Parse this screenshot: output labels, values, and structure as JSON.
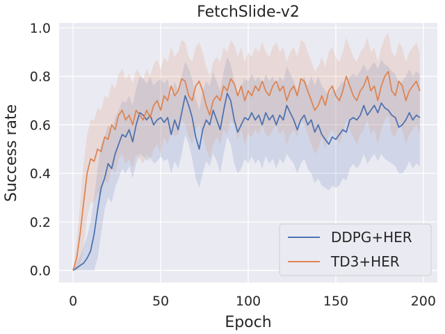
{
  "chart_data": {
    "type": "line",
    "title": "FetchSlide-v2",
    "xlabel": "Epoch",
    "ylabel": "Success rate",
    "xlim": [
      -8,
      208
    ],
    "ylim": [
      -0.05,
      1.02
    ],
    "xticks": [
      0,
      50,
      100,
      150,
      200
    ],
    "yticks": [
      0.0,
      0.2,
      0.4,
      0.6,
      0.8,
      1.0
    ],
    "grid": true,
    "legend": "bottom-right",
    "series": [
      {
        "name": "DDPG+HER",
        "color": "#4c72b0",
        "x": [
          0,
          2,
          4,
          6,
          8,
          10,
          12,
          14,
          16,
          18,
          20,
          22,
          24,
          26,
          28,
          30,
          32,
          34,
          36,
          38,
          40,
          42,
          44,
          46,
          48,
          50,
          52,
          54,
          56,
          58,
          60,
          62,
          64,
          66,
          68,
          70,
          72,
          74,
          76,
          78,
          80,
          82,
          84,
          86,
          88,
          90,
          92,
          94,
          96,
          98,
          100,
          102,
          104,
          106,
          108,
          110,
          112,
          114,
          116,
          118,
          120,
          122,
          124,
          126,
          128,
          130,
          132,
          134,
          136,
          138,
          140,
          142,
          144,
          146,
          148,
          150,
          152,
          154,
          156,
          158,
          160,
          162,
          164,
          166,
          168,
          170,
          172,
          174,
          176,
          178,
          180,
          182,
          184,
          186,
          188,
          190,
          192,
          194,
          196,
          198
        ],
        "values": [
          0.0,
          0.01,
          0.02,
          0.03,
          0.05,
          0.08,
          0.15,
          0.25,
          0.34,
          0.38,
          0.44,
          0.42,
          0.48,
          0.52,
          0.56,
          0.55,
          0.58,
          0.53,
          0.6,
          0.65,
          0.64,
          0.62,
          0.64,
          0.6,
          0.62,
          0.63,
          0.61,
          0.63,
          0.56,
          0.62,
          0.58,
          0.65,
          0.72,
          0.68,
          0.63,
          0.55,
          0.5,
          0.58,
          0.62,
          0.6,
          0.66,
          0.62,
          0.58,
          0.66,
          0.73,
          0.7,
          0.62,
          0.57,
          0.6,
          0.63,
          0.62,
          0.65,
          0.62,
          0.64,
          0.6,
          0.65,
          0.62,
          0.64,
          0.6,
          0.64,
          0.62,
          0.68,
          0.65,
          0.62,
          0.58,
          0.62,
          0.64,
          0.6,
          0.62,
          0.57,
          0.6,
          0.56,
          0.54,
          0.52,
          0.55,
          0.54,
          0.56,
          0.58,
          0.57,
          0.62,
          0.63,
          0.62,
          0.64,
          0.68,
          0.64,
          0.66,
          0.68,
          0.65,
          0.69,
          0.67,
          0.66,
          0.64,
          0.63,
          0.59,
          0.6,
          0.62,
          0.65,
          0.62,
          0.64,
          0.63
        ],
        "band_low": [
          0.0,
          0.0,
          0.0,
          0.0,
          0.0,
          0.0,
          0.0,
          0.05,
          0.15,
          0.25,
          0.3,
          0.28,
          0.34,
          0.38,
          0.42,
          0.4,
          0.43,
          0.38,
          0.44,
          0.48,
          0.47,
          0.45,
          0.47,
          0.44,
          0.45,
          0.47,
          0.45,
          0.46,
          0.4,
          0.45,
          0.42,
          0.48,
          0.56,
          0.52,
          0.46,
          0.38,
          0.34,
          0.4,
          0.45,
          0.43,
          0.48,
          0.45,
          0.4,
          0.48,
          0.55,
          0.52,
          0.44,
          0.4,
          0.42,
          0.46,
          0.44,
          0.47,
          0.44,
          0.46,
          0.42,
          0.47,
          0.44,
          0.46,
          0.42,
          0.46,
          0.44,
          0.48,
          0.46,
          0.44,
          0.4,
          0.44,
          0.46,
          0.42,
          0.4,
          0.36,
          0.38,
          0.35,
          0.34,
          0.33,
          0.35,
          0.34,
          0.35,
          0.38,
          0.37,
          0.42,
          0.44,
          0.42,
          0.44,
          0.48,
          0.44,
          0.46,
          0.48,
          0.45,
          0.48,
          0.46,
          0.45,
          0.44,
          0.43,
          0.4,
          0.4,
          0.42,
          0.45,
          0.42,
          0.44,
          0.43
        ],
        "band_high": [
          0.0,
          0.03,
          0.06,
          0.1,
          0.14,
          0.2,
          0.3,
          0.42,
          0.52,
          0.55,
          0.6,
          0.58,
          0.63,
          0.66,
          0.7,
          0.69,
          0.72,
          0.68,
          0.75,
          0.8,
          0.79,
          0.77,
          0.8,
          0.76,
          0.78,
          0.79,
          0.77,
          0.79,
          0.72,
          0.78,
          0.74,
          0.8,
          0.86,
          0.83,
          0.79,
          0.71,
          0.66,
          0.74,
          0.78,
          0.76,
          0.82,
          0.78,
          0.74,
          0.82,
          0.88,
          0.85,
          0.78,
          0.73,
          0.76,
          0.79,
          0.78,
          0.81,
          0.78,
          0.8,
          0.76,
          0.81,
          0.78,
          0.8,
          0.76,
          0.8,
          0.78,
          0.84,
          0.81,
          0.78,
          0.74,
          0.78,
          0.8,
          0.76,
          0.8,
          0.76,
          0.8,
          0.76,
          0.74,
          0.72,
          0.75,
          0.74,
          0.76,
          0.78,
          0.77,
          0.8,
          0.81,
          0.8,
          0.82,
          0.85,
          0.82,
          0.84,
          0.86,
          0.83,
          0.87,
          0.85,
          0.84,
          0.82,
          0.81,
          0.77,
          0.78,
          0.8,
          0.83,
          0.8,
          0.82,
          0.81
        ]
      },
      {
        "name": "TD3+HER",
        "color": "#dd8452",
        "x": [
          0,
          2,
          4,
          6,
          8,
          10,
          12,
          14,
          16,
          18,
          20,
          22,
          24,
          26,
          28,
          30,
          32,
          34,
          36,
          38,
          40,
          42,
          44,
          46,
          48,
          50,
          52,
          54,
          56,
          58,
          60,
          62,
          64,
          66,
          68,
          70,
          72,
          74,
          76,
          78,
          80,
          82,
          84,
          86,
          88,
          90,
          92,
          94,
          96,
          98,
          100,
          102,
          104,
          106,
          108,
          110,
          112,
          114,
          116,
          118,
          120,
          122,
          124,
          126,
          128,
          130,
          132,
          134,
          136,
          138,
          140,
          142,
          144,
          146,
          148,
          150,
          152,
          154,
          156,
          158,
          160,
          162,
          164,
          166,
          168,
          170,
          172,
          174,
          176,
          178,
          180,
          182,
          184,
          186,
          188,
          190,
          192,
          194,
          196,
          198
        ],
        "values": [
          0.0,
          0.05,
          0.15,
          0.28,
          0.4,
          0.46,
          0.45,
          0.5,
          0.49,
          0.55,
          0.54,
          0.6,
          0.58,
          0.64,
          0.66,
          0.62,
          0.64,
          0.6,
          0.66,
          0.64,
          0.62,
          0.66,
          0.63,
          0.68,
          0.7,
          0.66,
          0.72,
          0.7,
          0.76,
          0.72,
          0.74,
          0.79,
          0.78,
          0.72,
          0.7,
          0.76,
          0.78,
          0.74,
          0.68,
          0.64,
          0.7,
          0.72,
          0.7,
          0.76,
          0.74,
          0.79,
          0.77,
          0.72,
          0.76,
          0.7,
          0.74,
          0.72,
          0.76,
          0.74,
          0.78,
          0.74,
          0.72,
          0.76,
          0.78,
          0.74,
          0.76,
          0.7,
          0.74,
          0.76,
          0.72,
          0.79,
          0.78,
          0.74,
          0.7,
          0.66,
          0.68,
          0.72,
          0.68,
          0.74,
          0.76,
          0.72,
          0.7,
          0.74,
          0.8,
          0.76,
          0.72,
          0.7,
          0.74,
          0.76,
          0.8,
          0.74,
          0.76,
          0.7,
          0.76,
          0.8,
          0.82,
          0.74,
          0.72,
          0.78,
          0.76,
          0.7,
          0.74,
          0.76,
          0.78,
          0.74
        ],
        "band_low": [
          0.0,
          0.0,
          0.02,
          0.1,
          0.22,
          0.28,
          0.28,
          0.32,
          0.31,
          0.37,
          0.36,
          0.42,
          0.4,
          0.46,
          0.48,
          0.44,
          0.46,
          0.42,
          0.48,
          0.46,
          0.44,
          0.48,
          0.45,
          0.5,
          0.52,
          0.48,
          0.55,
          0.52,
          0.58,
          0.55,
          0.56,
          0.62,
          0.6,
          0.55,
          0.52,
          0.58,
          0.6,
          0.56,
          0.5,
          0.46,
          0.52,
          0.55,
          0.52,
          0.58,
          0.56,
          0.62,
          0.6,
          0.54,
          0.58,
          0.52,
          0.56,
          0.55,
          0.58,
          0.56,
          0.6,
          0.56,
          0.55,
          0.58,
          0.6,
          0.56,
          0.58,
          0.52,
          0.56,
          0.58,
          0.55,
          0.62,
          0.6,
          0.56,
          0.52,
          0.48,
          0.5,
          0.55,
          0.5,
          0.56,
          0.58,
          0.55,
          0.52,
          0.56,
          0.62,
          0.58,
          0.55,
          0.52,
          0.56,
          0.58,
          0.62,
          0.56,
          0.58,
          0.52,
          0.58,
          0.62,
          0.64,
          0.56,
          0.55,
          0.6,
          0.58,
          0.52,
          0.56,
          0.58,
          0.6,
          0.56
        ],
        "band_high": [
          0.0,
          0.12,
          0.28,
          0.44,
          0.56,
          0.62,
          0.62,
          0.67,
          0.66,
          0.72,
          0.71,
          0.77,
          0.75,
          0.81,
          0.83,
          0.79,
          0.81,
          0.77,
          0.83,
          0.81,
          0.79,
          0.83,
          0.8,
          0.85,
          0.87,
          0.83,
          0.88,
          0.86,
          0.92,
          0.88,
          0.9,
          0.95,
          0.94,
          0.88,
          0.86,
          0.92,
          0.94,
          0.9,
          0.84,
          0.8,
          0.86,
          0.88,
          0.86,
          0.92,
          0.9,
          0.95,
          0.93,
          0.88,
          0.92,
          0.86,
          0.9,
          0.88,
          0.92,
          0.9,
          0.94,
          0.9,
          0.88,
          0.92,
          0.94,
          0.9,
          0.92,
          0.86,
          0.9,
          0.92,
          0.88,
          0.95,
          0.94,
          0.9,
          0.86,
          0.82,
          0.84,
          0.88,
          0.84,
          0.9,
          0.92,
          0.88,
          0.86,
          0.9,
          0.96,
          0.92,
          0.88,
          0.86,
          0.9,
          0.92,
          0.96,
          0.9,
          0.92,
          0.86,
          0.92,
          0.96,
          0.98,
          0.9,
          0.88,
          0.94,
          0.92,
          0.86,
          0.9,
          0.92,
          0.94,
          0.9
        ]
      }
    ]
  }
}
